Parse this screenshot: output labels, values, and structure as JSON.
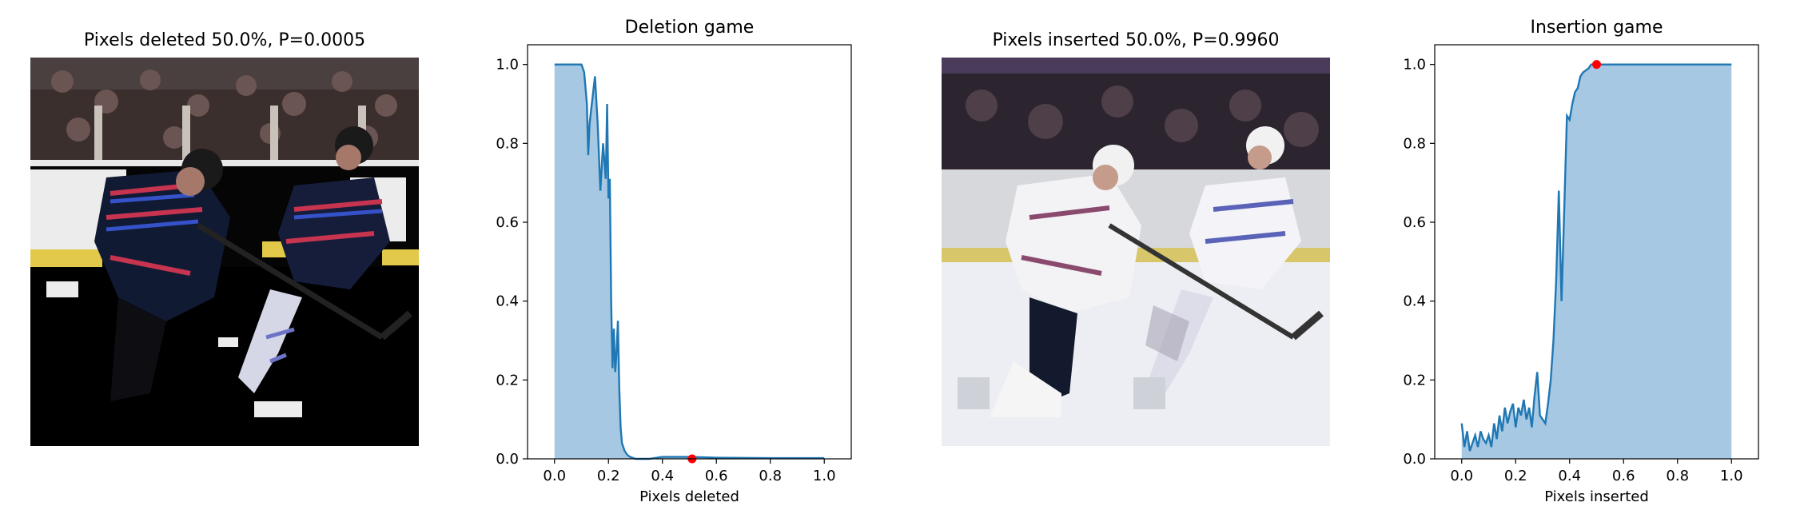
{
  "panels": [
    {
      "title": "Pixels deleted 50.0%, P=0.0005"
    },
    {
      "title": "Deletion game"
    },
    {
      "title": "Pixels inserted 50.0%, P=0.9960"
    },
    {
      "title": "Insertion game"
    }
  ],
  "colors": {
    "line": "#1f77b4",
    "fill": "#a6c8e2",
    "marker": "#ff0000"
  },
  "chart_data": [
    {
      "type": "area",
      "title": "Deletion game",
      "xlabel": "Pixels deleted",
      "ylabel": "",
      "xlim": [
        -0.1,
        1.1
      ],
      "ylim": [
        0,
        1.05
      ],
      "xticks": [
        "0.0",
        "0.2",
        "0.4",
        "0.6",
        "0.8",
        "1.0"
      ],
      "yticks": [
        "0.0",
        "0.2",
        "0.4",
        "0.6",
        "0.8",
        "1.0"
      ],
      "x": [
        0.0,
        0.05,
        0.1,
        0.11,
        0.12,
        0.125,
        0.13,
        0.14,
        0.15,
        0.16,
        0.17,
        0.18,
        0.19,
        0.195,
        0.2,
        0.205,
        0.21,
        0.215,
        0.22,
        0.225,
        0.23,
        0.235,
        0.24,
        0.245,
        0.25,
        0.26,
        0.27,
        0.28,
        0.3,
        0.35,
        0.4,
        0.5,
        0.6,
        0.8,
        1.0
      ],
      "y": [
        1.0,
        1.0,
        1.0,
        0.98,
        0.9,
        0.77,
        0.85,
        0.91,
        0.97,
        0.85,
        0.68,
        0.8,
        0.71,
        0.9,
        0.66,
        0.71,
        0.4,
        0.23,
        0.33,
        0.22,
        0.27,
        0.35,
        0.18,
        0.08,
        0.04,
        0.02,
        0.01,
        0.005,
        0.0,
        0.0,
        0.005,
        0.005,
        0.003,
        0.002,
        0.002
      ],
      "marker": {
        "x": 0.51,
        "y": 0.0
      },
      "grid": false
    },
    {
      "type": "area",
      "title": "Insertion game",
      "xlabel": "Pixels inserted",
      "ylabel": "",
      "xlim": [
        -0.1,
        1.1
      ],
      "ylim": [
        0,
        1.05
      ],
      "xticks": [
        "0.0",
        "0.2",
        "0.4",
        "0.6",
        "0.8",
        "1.0"
      ],
      "yticks": [
        "0.0",
        "0.2",
        "0.4",
        "0.6",
        "0.8",
        "1.0"
      ],
      "x": [
        0.0,
        0.01,
        0.02,
        0.03,
        0.04,
        0.05,
        0.06,
        0.07,
        0.08,
        0.09,
        0.1,
        0.11,
        0.12,
        0.13,
        0.14,
        0.15,
        0.16,
        0.17,
        0.18,
        0.19,
        0.2,
        0.21,
        0.22,
        0.23,
        0.24,
        0.25,
        0.26,
        0.27,
        0.28,
        0.29,
        0.3,
        0.31,
        0.32,
        0.33,
        0.34,
        0.35,
        0.36,
        0.37,
        0.38,
        0.39,
        0.4,
        0.41,
        0.42,
        0.43,
        0.44,
        0.45,
        0.46,
        0.47,
        0.48,
        0.5,
        0.55,
        0.6,
        0.8,
        1.0
      ],
      "y": [
        0.09,
        0.03,
        0.07,
        0.02,
        0.04,
        0.06,
        0.03,
        0.07,
        0.05,
        0.04,
        0.06,
        0.03,
        0.09,
        0.05,
        0.11,
        0.07,
        0.13,
        0.09,
        0.12,
        0.14,
        0.08,
        0.13,
        0.11,
        0.15,
        0.1,
        0.13,
        0.08,
        0.16,
        0.22,
        0.11,
        0.1,
        0.09,
        0.14,
        0.2,
        0.3,
        0.45,
        0.68,
        0.4,
        0.63,
        0.87,
        0.86,
        0.9,
        0.93,
        0.94,
        0.97,
        0.98,
        0.985,
        0.99,
        1.0,
        1.0,
        1.0,
        1.0,
        1.0,
        1.0
      ],
      "marker": {
        "x": 0.5,
        "y": 1.0
      },
      "grid": false
    }
  ]
}
